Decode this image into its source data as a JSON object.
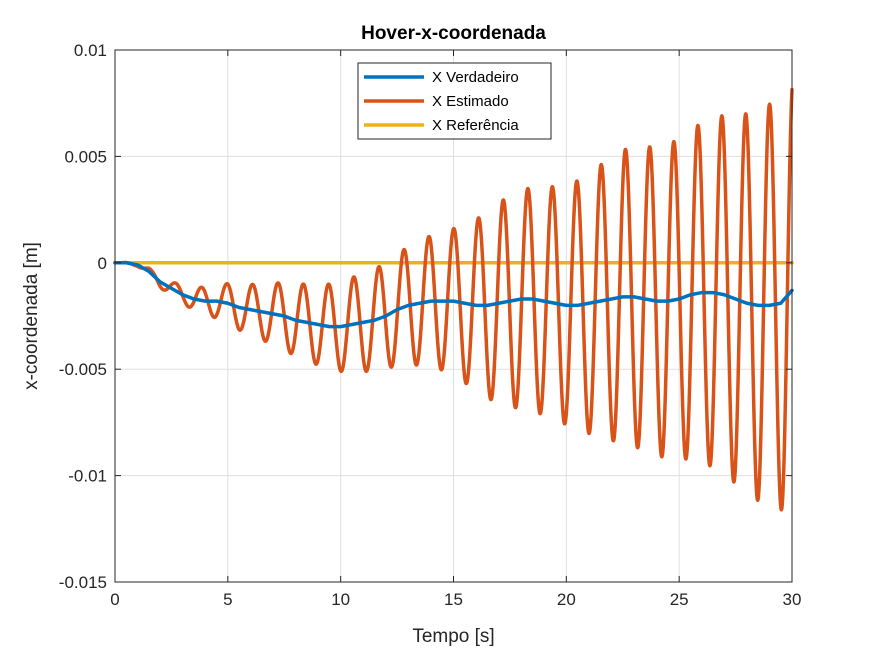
{
  "chart_data": {
    "type": "line",
    "title": "Hover-x-coordenada",
    "xlabel": "Tempo [s]",
    "ylabel": "x-coordenada [m]",
    "xlim": [
      0,
      30
    ],
    "ylim": [
      -0.015,
      0.01
    ],
    "xticks": [
      0,
      5,
      10,
      15,
      20,
      25,
      30
    ],
    "xtick_labels": [
      "0",
      "5",
      "10",
      "15",
      "20",
      "25",
      "30"
    ],
    "yticks": [
      -0.015,
      -0.01,
      -0.005,
      0,
      0.005,
      0.01
    ],
    "ytick_labels": [
      "-0.015",
      "-0.01",
      "-0.005",
      "0",
      "0.005",
      "0.01"
    ],
    "grid": true,
    "legend_position": "top-center",
    "series": [
      {
        "name": "X Verdadeiro",
        "color": "#0072BD",
        "x": [
          0,
          0.5,
          1,
          1.5,
          2,
          2.5,
          3,
          3.5,
          4,
          4.5,
          5,
          5.5,
          6,
          6.5,
          7,
          7.5,
          8,
          8.5,
          9,
          9.5,
          10,
          10.5,
          11,
          11.5,
          12,
          12.5,
          13,
          13.5,
          14,
          14.5,
          15,
          15.5,
          16,
          16.5,
          17,
          17.5,
          18,
          18.5,
          19,
          19.5,
          20,
          20.5,
          21,
          21.5,
          22,
          22.5,
          23,
          23.5,
          24,
          24.5,
          25,
          25.5,
          26,
          26.5,
          27,
          27.5,
          28,
          28.5,
          29,
          29.5,
          30
        ],
        "y": [
          0,
          0,
          -0.0001,
          -0.0004,
          -0.0009,
          -0.0012,
          -0.0015,
          -0.0017,
          -0.0018,
          -0.0018,
          -0.0019,
          -0.0021,
          -0.0022,
          -0.0023,
          -0.0024,
          -0.0025,
          -0.0027,
          -0.0028,
          -0.0029,
          -0.003,
          -0.003,
          -0.0029,
          -0.0028,
          -0.0027,
          -0.0025,
          -0.0022,
          -0.002,
          -0.0019,
          -0.0018,
          -0.0018,
          -0.0018,
          -0.0019,
          -0.002,
          -0.002,
          -0.0019,
          -0.0018,
          -0.0017,
          -0.0017,
          -0.0018,
          -0.0019,
          -0.002,
          -0.002,
          -0.0019,
          -0.0018,
          -0.0017,
          -0.0016,
          -0.0016,
          -0.0017,
          -0.0018,
          -0.0018,
          -0.0017,
          -0.0015,
          -0.0014,
          -0.0014,
          -0.0015,
          -0.0017,
          -0.0019,
          -0.002,
          -0.002,
          -0.0019,
          -0.0013
        ]
      },
      {
        "name": "X Estimado",
        "color": "#D95319",
        "x": [
          0,
          0.5,
          1,
          1.5,
          2,
          2.5,
          3,
          3.5,
          4,
          4.5,
          5,
          5.5,
          6,
          6.5,
          7,
          7.5,
          8,
          8.5,
          9,
          9.5,
          10,
          10.5,
          11,
          11.5,
          12,
          12.5,
          13,
          13.5,
          14,
          14.5,
          15,
          15.5,
          16,
          16.5,
          17,
          17.5,
          18,
          18.5,
          19,
          19.5,
          20,
          20.5,
          21,
          21.5,
          22,
          22.5,
          23,
          23.5,
          24,
          24.5,
          25,
          25.5,
          26,
          26.5,
          27,
          27.5,
          28,
          28.5,
          29,
          29.5,
          30
        ],
        "y": [
          0,
          0,
          -0.0001,
          -0.0004,
          -0.0009,
          -0.0012,
          -0.0015,
          -0.0017,
          -0.0018,
          -0.0018,
          -0.0019,
          -0.0021,
          -0.0022,
          -0.0023,
          -0.0024,
          -0.0025,
          -0.0027,
          -0.0028,
          -0.0029,
          -0.003,
          -0.003,
          -0.0029,
          -0.0028,
          -0.0027,
          -0.0025,
          -0.0022,
          -0.002,
          -0.0019,
          -0.0018,
          -0.0018,
          -0.0018,
          -0.0019,
          -0.002,
          -0.002,
          -0.0019,
          -0.0018,
          -0.0017,
          -0.0017,
          -0.0018,
          -0.0019,
          -0.002,
          -0.002,
          -0.0019,
          -0.0018,
          -0.0017,
          -0.0016,
          -0.0016,
          -0.0017,
          -0.0018,
          -0.0018,
          -0.0017,
          -0.0015,
          -0.0014,
          -0.0014,
          -0.0015,
          -0.0017,
          -0.0019,
          -0.002,
          -0.002,
          -0.0019,
          -0.0013
        ],
        "oscillation": {
          "period_s": [
            1.15,
            1.05
          ],
          "amplitude_t": [
            0,
            3,
            8,
            12.5,
            15,
            17.5,
            20,
            22.5,
            25,
            28,
            30
          ],
          "amplitude_m": [
            0,
            0.0004,
            0.0017,
            0.0026,
            0.0034,
            0.005,
            0.0056,
            0.0069,
            0.0075,
            0.0089,
            0.01
          ]
        }
      },
      {
        "name": "X Referência",
        "color": "#EDB120",
        "x": [
          0,
          30
        ],
        "y": [
          0,
          0
        ]
      }
    ]
  }
}
